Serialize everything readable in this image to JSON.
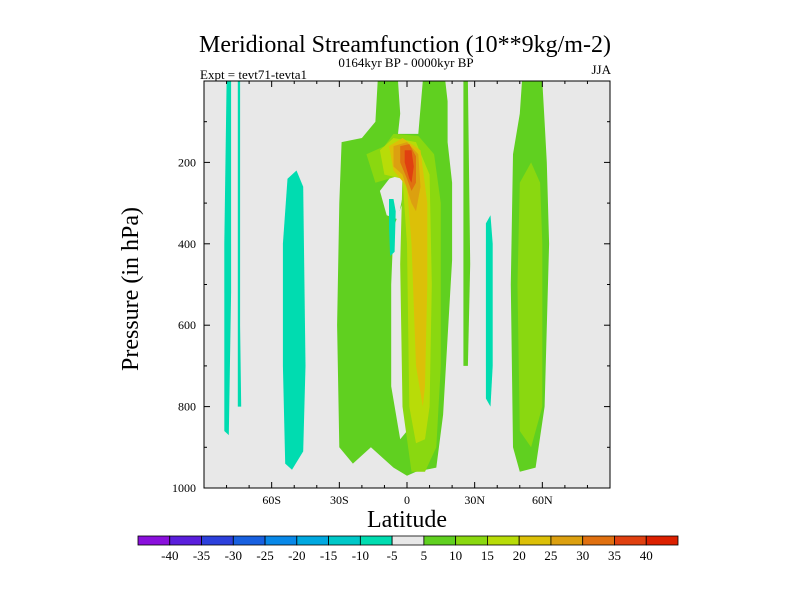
{
  "chart_data": {
    "type": "contour",
    "title": "Meridional Streamfunction (10**9kg/m-2)",
    "subtitle_left": "Expt = tevt71-tevta1",
    "subtitle_center": "0164kyr BP - 0000kyr BP",
    "subtitle_right": "JJA",
    "xlabel": "Latitude",
    "ylabel": "Pressure (in hPa)",
    "xlim": [
      -90,
      90
    ],
    "ylim": [
      1000,
      0
    ],
    "x_ticks": [
      {
        "value": -60,
        "label": "60S"
      },
      {
        "value": -30,
        "label": "30S"
      },
      {
        "value": 0,
        "label": "0"
      },
      {
        "value": 30,
        "label": "30N"
      },
      {
        "value": 60,
        "label": "60N"
      }
    ],
    "y_ticks": [
      {
        "value": 200,
        "label": "200"
      },
      {
        "value": 400,
        "label": "400"
      },
      {
        "value": 600,
        "label": "600"
      },
      {
        "value": 800,
        "label": "800"
      },
      {
        "value": 1000,
        "label": "1000"
      }
    ],
    "background_color": "#e8e8e8",
    "contour_levels": [
      -40,
      -35,
      -30,
      -25,
      -20,
      -15,
      -10,
      -5,
      5,
      10,
      15,
      20,
      25,
      30,
      35,
      40
    ],
    "colorbar": {
      "colors": [
        "#8a10dc",
        "#5a1edc",
        "#2c40dc",
        "#1860e0",
        "#0888e8",
        "#00a8e0",
        "#00c8c8",
        "#00dcb0",
        "#e8e8e8",
        "#60d020",
        "#8ad810",
        "#b8dc08",
        "#dcc008",
        "#dca010",
        "#e07010",
        "#e04010",
        "#dc2000"
      ],
      "labels": [
        "-40",
        "-35",
        "-30",
        "-25",
        "-20",
        "-15",
        "-10",
        "-5",
        "5",
        "10",
        "15",
        "20",
        "25",
        "30",
        "35",
        "40"
      ]
    },
    "regions": [
      {
        "name": "sh-negative-cell",
        "level": -10,
        "points": [
          [
            -80,
            0
          ],
          [
            -78,
            0
          ],
          [
            -78,
            520
          ],
          [
            -79,
            870
          ],
          [
            -81,
            860
          ],
          [
            -81,
            400
          ]
        ]
      },
      {
        "name": "sh-negative-strip",
        "level": -10,
        "points": [
          [
            -75,
            0
          ],
          [
            -74,
            0
          ],
          [
            -74,
            600
          ],
          [
            -73.5,
            800
          ],
          [
            -75,
            800
          ],
          [
            -75,
            300
          ]
        ]
      },
      {
        "name": "southern-negative-cell",
        "level": -10,
        "points": [
          [
            -53,
            240
          ],
          [
            -49,
            220
          ],
          [
            -46,
            260
          ],
          [
            -45,
            700
          ],
          [
            -46,
            910
          ],
          [
            -51,
            955
          ],
          [
            -54,
            940
          ],
          [
            -55,
            700
          ],
          [
            -55,
            400
          ]
        ]
      },
      {
        "name": "hadley-positive-cell",
        "level": 5,
        "points": [
          [
            -29,
            150
          ],
          [
            -20,
            140
          ],
          [
            -14,
            100
          ],
          [
            -13,
            0
          ],
          [
            -4,
            0
          ],
          [
            -3,
            80
          ],
          [
            -4,
            130
          ],
          [
            5,
            130
          ],
          [
            7,
            0
          ],
          [
            17,
            0
          ],
          [
            18,
            50
          ],
          [
            18,
            150
          ],
          [
            20,
            250
          ],
          [
            20,
            440
          ],
          [
            16,
            820
          ],
          [
            13,
            950
          ],
          [
            4,
            960
          ],
          [
            0,
            970
          ],
          [
            -6,
            950
          ],
          [
            -12,
            920
          ],
          [
            -16,
            900
          ],
          [
            -24,
            940
          ],
          [
            -30,
            900
          ],
          [
            -31,
            600
          ],
          [
            -30,
            300
          ]
        ]
      },
      {
        "name": "nh-positive-cell",
        "level": 5,
        "points": [
          [
            47,
            180
          ],
          [
            50,
            80
          ],
          [
            51,
            0
          ],
          [
            60,
            0
          ],
          [
            61,
            100
          ],
          [
            62,
            200
          ],
          [
            63,
            400
          ],
          [
            61,
            800
          ],
          [
            57,
            950
          ],
          [
            50,
            960
          ],
          [
            47,
            900
          ],
          [
            46,
            500
          ]
        ]
      },
      {
        "name": "nh-positive-strip",
        "level": 5,
        "points": [
          [
            25,
            0
          ],
          [
            27,
            0
          ],
          [
            28,
            450
          ],
          [
            27,
            700
          ],
          [
            25,
            700
          ],
          [
            25,
            300
          ]
        ]
      },
      {
        "name": "hole-upper",
        "level": 0,
        "points": [
          [
            -12,
            270
          ],
          [
            -5,
            220
          ],
          [
            0,
            230
          ],
          [
            -4,
            340
          ],
          [
            -9,
            330
          ]
        ]
      },
      {
        "name": "hole-lower",
        "level": 0,
        "points": [
          [
            -6,
            360
          ],
          [
            -2,
            300
          ],
          [
            0,
            260
          ],
          [
            1,
            700
          ],
          [
            0,
            860
          ],
          [
            -3,
            880
          ],
          [
            -7,
            750
          ],
          [
            -7,
            500
          ]
        ]
      },
      {
        "name": "negative-blob",
        "level": -10,
        "points": [
          [
            -8,
            290
          ],
          [
            -6,
            290
          ],
          [
            -5,
            320
          ],
          [
            -5.5,
            420
          ],
          [
            -7.5,
            430
          ],
          [
            -8,
            360
          ]
        ]
      },
      {
        "name": "negative-strip-east",
        "level": -10,
        "points": [
          [
            35,
            350
          ],
          [
            37,
            330
          ],
          [
            38,
            400
          ],
          [
            38,
            700
          ],
          [
            37,
            800
          ],
          [
            35,
            780
          ]
        ]
      },
      {
        "name": "hadley-10",
        "level": 10,
        "points": [
          [
            -18,
            180
          ],
          [
            -10,
            160
          ],
          [
            -6,
            130
          ],
          [
            5,
            135
          ],
          [
            12,
            180
          ],
          [
            15,
            300
          ],
          [
            15,
            700
          ],
          [
            13,
            900
          ],
          [
            8,
            960
          ],
          [
            2,
            960
          ],
          [
            -2,
            800
          ],
          [
            -3,
            450
          ],
          [
            -2,
            230
          ],
          [
            -14,
            250
          ]
        ]
      },
      {
        "name": "nh-10",
        "level": 10,
        "points": [
          [
            50,
            250
          ],
          [
            55,
            200
          ],
          [
            59,
            250
          ],
          [
            60,
            400
          ],
          [
            60,
            800
          ],
          [
            55,
            900
          ],
          [
            50,
            860
          ],
          [
            49,
            500
          ]
        ]
      },
      {
        "name": "hadley-15",
        "level": 15,
        "points": [
          [
            -12,
            170
          ],
          [
            -6,
            140
          ],
          [
            4,
            150
          ],
          [
            10,
            230
          ],
          [
            11,
            500
          ],
          [
            10,
            800
          ],
          [
            8,
            880
          ],
          [
            4,
            890
          ],
          [
            1,
            800
          ],
          [
            0,
            400
          ],
          [
            -2,
            240
          ],
          [
            -10,
            230
          ]
        ]
      },
      {
        "name": "hadley-20",
        "level": 20,
        "points": [
          [
            -8,
            160
          ],
          [
            -2,
            140
          ],
          [
            6,
            170
          ],
          [
            9,
            300
          ],
          [
            9,
            500
          ],
          [
            8,
            750
          ],
          [
            7,
            800
          ],
          [
            4,
            700
          ],
          [
            2,
            400
          ],
          [
            0,
            260
          ],
          [
            -6,
            220
          ]
        ]
      },
      {
        "name": "hadley-25",
        "level": 25,
        "points": [
          [
            -6,
            160
          ],
          [
            0,
            150
          ],
          [
            5,
            180
          ],
          [
            6,
            260
          ],
          [
            4,
            320
          ],
          [
            2,
            300
          ],
          [
            -2,
            230
          ],
          [
            -6,
            210
          ]
        ]
      },
      {
        "name": "hadley-30",
        "level": 30,
        "points": [
          [
            -3,
            160
          ],
          [
            1,
            155
          ],
          [
            4,
            185
          ],
          [
            4,
            250
          ],
          [
            2,
            270
          ],
          [
            0,
            240
          ],
          [
            -3,
            200
          ]
        ]
      },
      {
        "name": "hadley-35",
        "level": 35,
        "points": [
          [
            -1,
            170
          ],
          [
            2,
            170
          ],
          [
            3,
            210
          ],
          [
            2,
            250
          ],
          [
            1,
            240
          ],
          [
            -1,
            200
          ]
        ]
      }
    ]
  }
}
